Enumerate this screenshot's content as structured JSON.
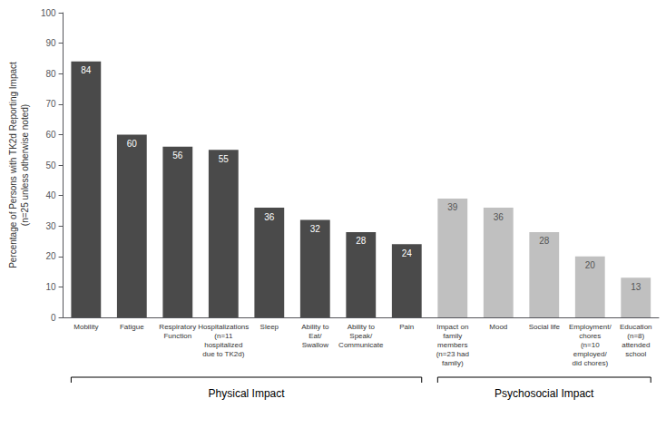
{
  "chart_data": {
    "type": "bar",
    "categories": [
      "Mobility",
      "Fatigue",
      "Respiratory\nFunction",
      "Hospitalizations\n(n=11\nhospitalized\ndue to TK2d)",
      "Sleep",
      "Ability to\nEat/\nSwallow",
      "Ability to\nSpeak/\nCommunicate",
      "Pain",
      "Impact on\nfamily\nmembers\n(n=23 had\nfamily)",
      "Mood",
      "Social life",
      "Employment/\nchores\n(n=10\nemployed/\ndid chores)",
      "Education\n(n=8)\nattended\nschool"
    ],
    "values": [
      84,
      60,
      56,
      55,
      36,
      32,
      28,
      24,
      39,
      36,
      28,
      20,
      13
    ],
    "colors": [
      "#4a4a4a",
      "#4a4a4a",
      "#4a4a4a",
      "#4a4a4a",
      "#4a4a4a",
      "#4a4a4a",
      "#4a4a4a",
      "#4a4a4a",
      "#c0c0c0",
      "#c0c0c0",
      "#c0c0c0",
      "#c0c0c0",
      "#c0c0c0"
    ],
    "ylabel": "Percentage of Persons with TK2d Reporting Impact\n(n=25 unless otherwise noted)",
    "ylim": [
      0,
      100
    ],
    "yticks": [
      0,
      10,
      20,
      30,
      40,
      50,
      60,
      70,
      80,
      90,
      100
    ],
    "data_labels": true,
    "grid": false,
    "annotations": [
      {
        "text": "Physical Impact",
        "from": "Mobility",
        "to": "Pain"
      },
      {
        "text": "Psychosocial Impact",
        "from": "Impact on\nfamily\nmembers\n(n=23 had\nfamily)",
        "to": "Education\n(n=8)\nattended\nschool"
      }
    ]
  }
}
